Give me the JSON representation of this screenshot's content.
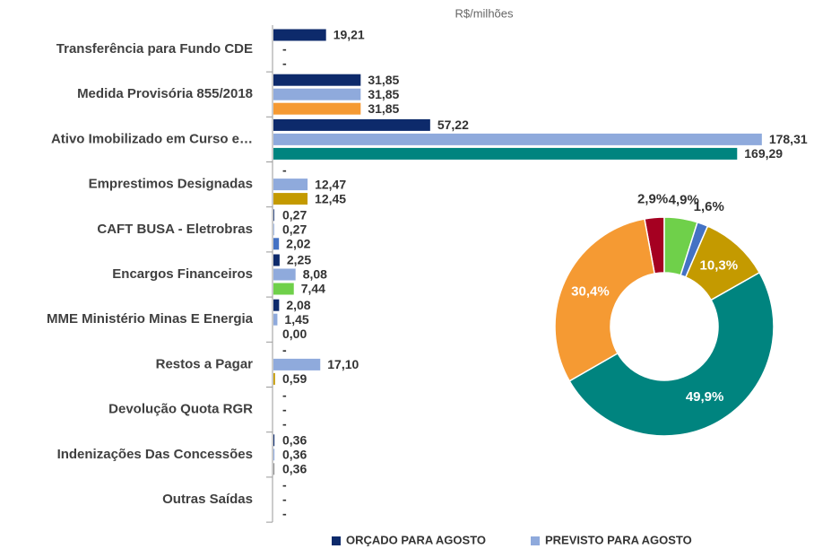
{
  "chart_data": [
    {
      "type": "bar",
      "orientation": "horizontal",
      "subtitle": "R$/milhões",
      "categories": [
        "Transferência para Fundo CDE",
        "Medida Provisória 855/2018",
        "Ativo Imobilizado em Curso e…",
        "Emprestimos Designadas",
        "CAFT BUSA - Eletrobras",
        "Encargos Financeiros",
        "MME Ministério Minas E Energia",
        "Restos a Pagar",
        "Devolução Quota RGR",
        "Indenizações Das Concessões",
        "Outras Saídas"
      ],
      "xlim": [
        0,
        180
      ],
      "series": [
        {
          "name": "ORÇADO PARA AGOSTO",
          "color": "#0d2a6b",
          "values": [
            19.21,
            31.85,
            57.22,
            null,
            0.27,
            2.25,
            2.08,
            null,
            null,
            0.36,
            null
          ],
          "value_labels": [
            "19,21",
            "31,85",
            "57,22",
            "-",
            "0,27",
            "2,25",
            "2,08",
            "-",
            "-",
            "0,36",
            "-"
          ]
        },
        {
          "name": "PREVISTO PARA AGOSTO",
          "color": "#8faadc",
          "values": [
            null,
            31.85,
            178.31,
            12.47,
            0.27,
            8.08,
            1.45,
            17.1,
            null,
            0.36,
            null
          ],
          "value_labels": [
            "-",
            "31,85",
            "178,31",
            "12,47",
            "0,27",
            "8,08",
            "1,45",
            "17,10",
            "-",
            "0,36",
            "-"
          ]
        },
        {
          "colors": [
            null,
            "#f59a33",
            "#00847f",
            "#c49a00",
            "#4472c4",
            "#6fd04a",
            "#a50021",
            "#c49a00",
            null,
            "#8c8c8c",
            null
          ],
          "values": [
            null,
            31.85,
            169.29,
            12.45,
            2.02,
            7.44,
            0,
            0.59,
            null,
            0.36,
            null
          ],
          "value_labels": [
            "-",
            "31,85",
            "169,29",
            "12,45",
            "2,02",
            "7,44",
            "0,00",
            "0,59",
            "-",
            "0,36",
            "-"
          ]
        }
      ]
    },
    {
      "type": "pie",
      "donut": true,
      "values": [
        2.9,
        4.9,
        1.6,
        10.3,
        49.9,
        30.4
      ],
      "value_labels": [
        "2,9%",
        "4,9%",
        "1,6%",
        "10,3%",
        "49,9%",
        "30,4%"
      ],
      "colors": [
        "#a50021",
        "#6fd04a",
        "#4472c4",
        "#c49a00",
        "#00847f",
        "#f59a33"
      ]
    }
  ]
}
